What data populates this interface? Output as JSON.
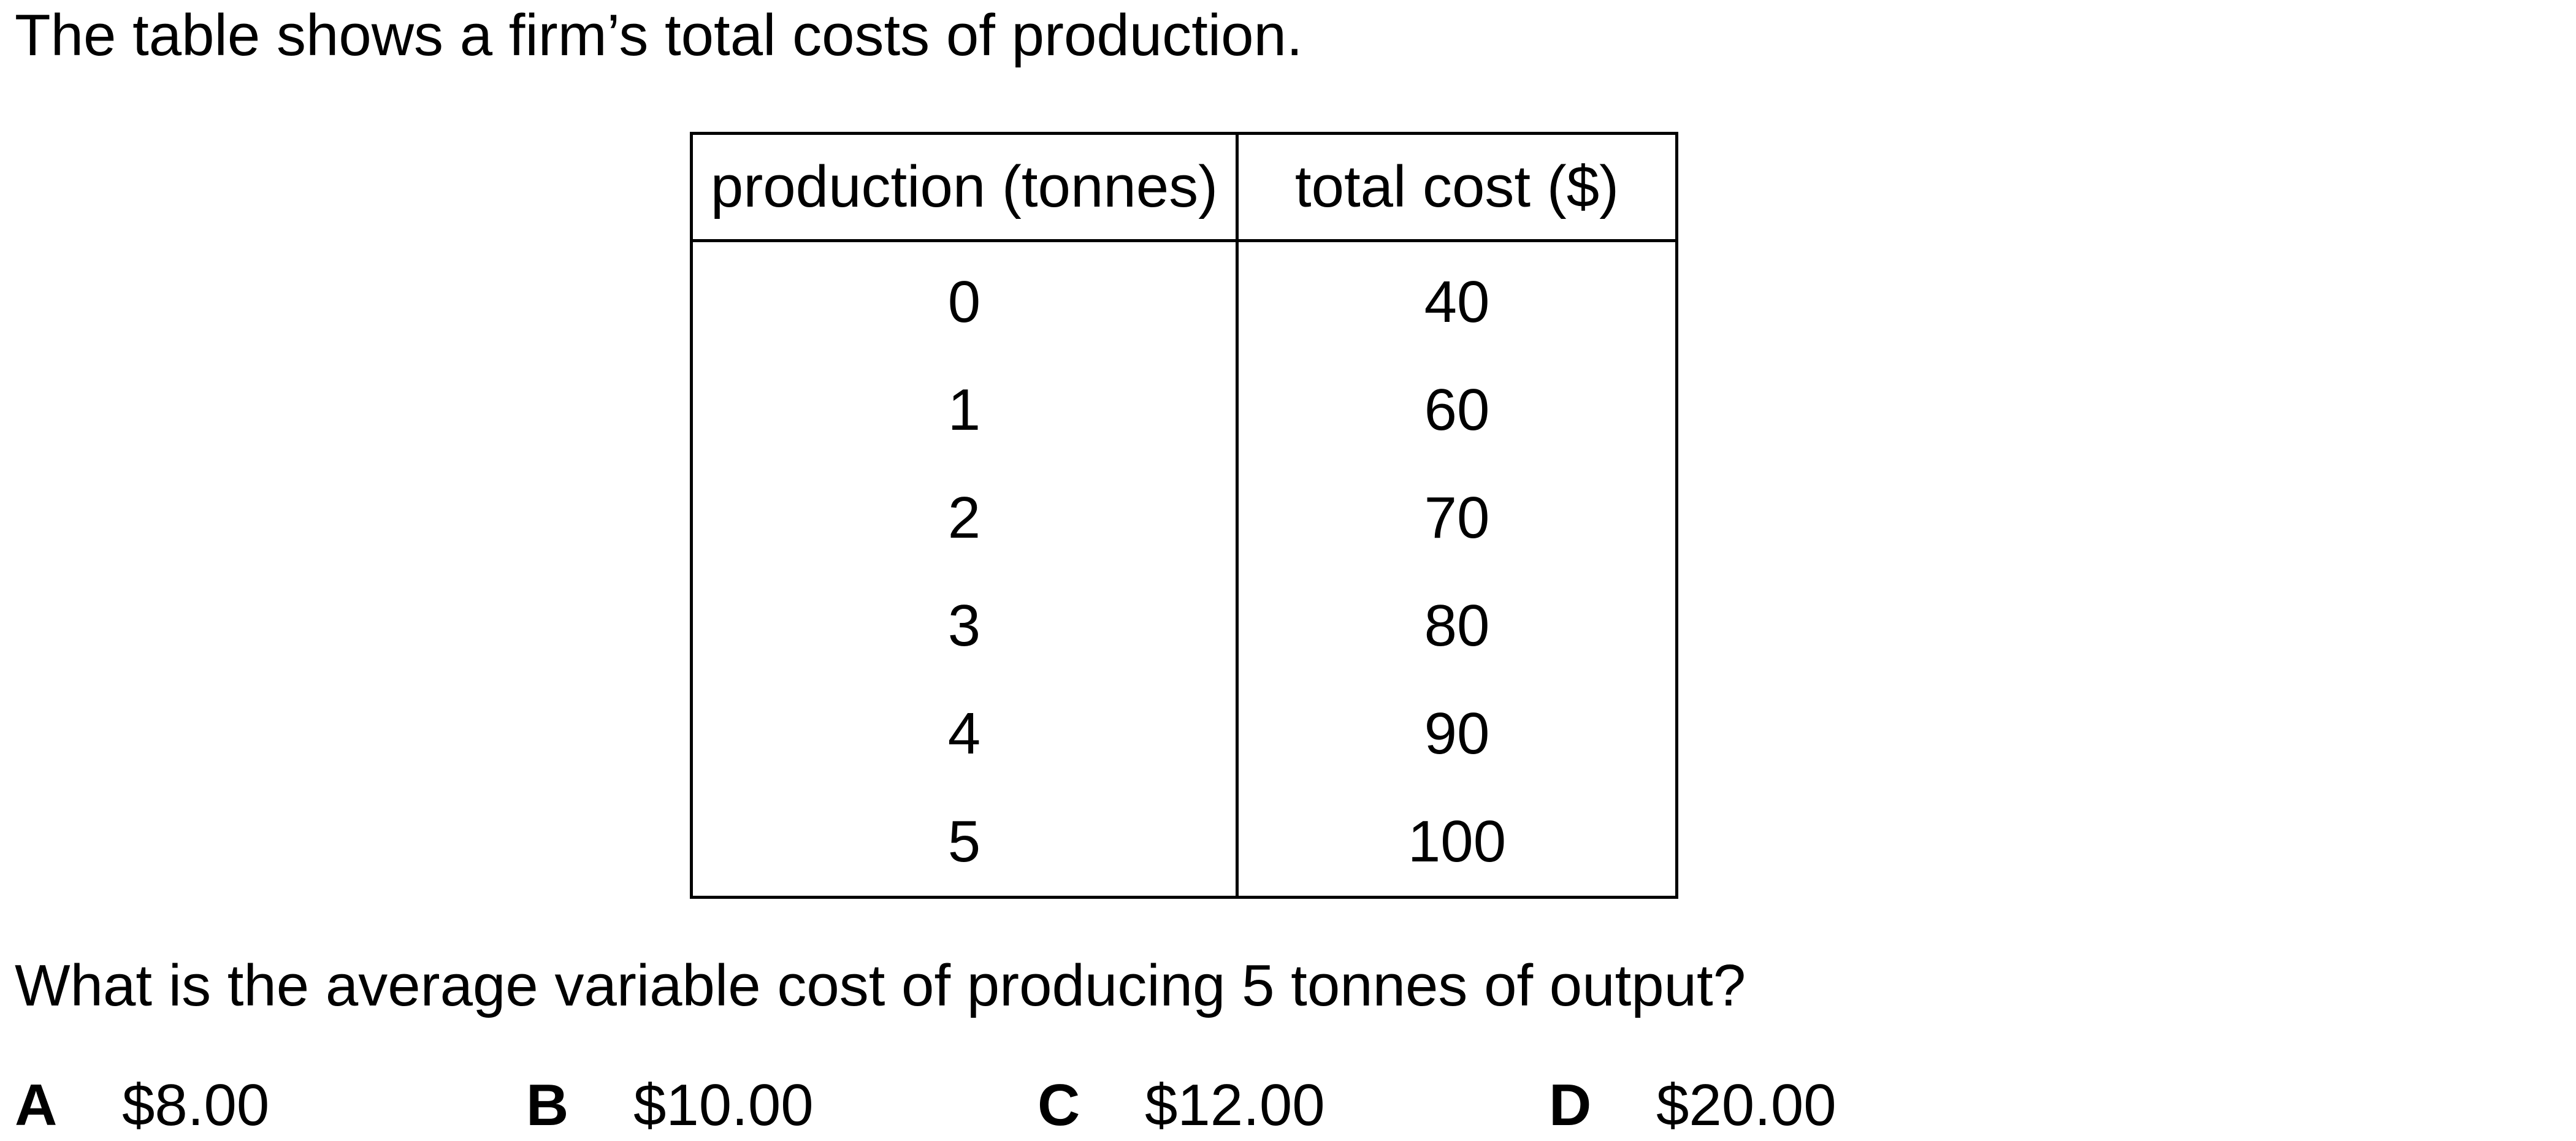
{
  "intro_text": "The table shows a firm’s total costs of production.",
  "table": {
    "headers": [
      "production (tonnes)",
      "total cost ($)"
    ],
    "rows": [
      [
        "0",
        "40"
      ],
      [
        "1",
        "60"
      ],
      [
        "2",
        "70"
      ],
      [
        "3",
        "80"
      ],
      [
        "4",
        "90"
      ],
      [
        "5",
        "100"
      ]
    ]
  },
  "question_text": "What is the average variable cost of producing 5 tonnes of output?",
  "options": [
    {
      "letter": "A",
      "value": "$8.00"
    },
    {
      "letter": "B",
      "value": "$10.00"
    },
    {
      "letter": "C",
      "value": "$12.00"
    },
    {
      "letter": "D",
      "value": "$20.00"
    }
  ]
}
